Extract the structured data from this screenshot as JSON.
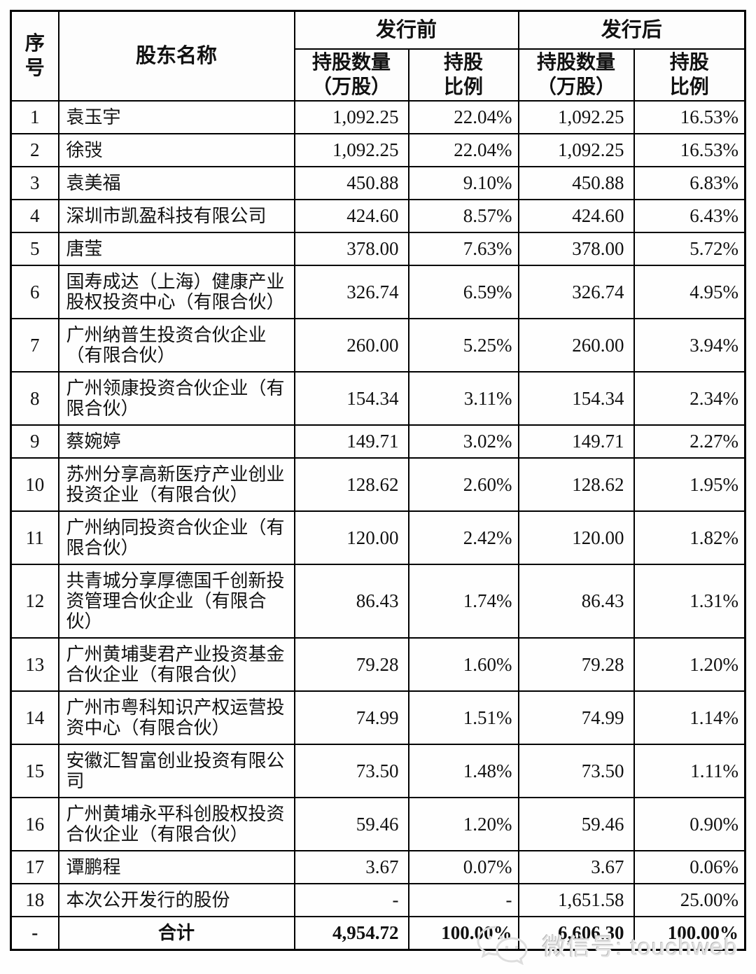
{
  "table": {
    "headers": {
      "no": "序\n号",
      "shareholder": "股东名称",
      "pre_issue": "发行前",
      "post_issue": "发行后",
      "qty": "持股数量\n（万股）",
      "ratio": "持股\n比例"
    },
    "rows": [
      {
        "no": "1",
        "name": "袁玉宇",
        "pre_qty": "1,092.25",
        "pre_pct": "22.04%",
        "post_qty": "1,092.25",
        "post_pct": "16.53%"
      },
      {
        "no": "2",
        "name": "徐弢",
        "pre_qty": "1,092.25",
        "pre_pct": "22.04%",
        "post_qty": "1,092.25",
        "post_pct": "16.53%"
      },
      {
        "no": "3",
        "name": "袁美福",
        "pre_qty": "450.88",
        "pre_pct": "9.10%",
        "post_qty": "450.88",
        "post_pct": "6.83%"
      },
      {
        "no": "4",
        "name": "深圳市凯盈科技有限公司",
        "pre_qty": "424.60",
        "pre_pct": "8.57%",
        "post_qty": "424.60",
        "post_pct": "6.43%"
      },
      {
        "no": "5",
        "name": "唐莹",
        "pre_qty": "378.00",
        "pre_pct": "7.63%",
        "post_qty": "378.00",
        "post_pct": "5.72%"
      },
      {
        "no": "6",
        "name": "国寿成达（上海）健康产业股权投资中心（有限合伙）",
        "pre_qty": "326.74",
        "pre_pct": "6.59%",
        "post_qty": "326.74",
        "post_pct": "4.95%"
      },
      {
        "no": "7",
        "name": "广州纳普生投资合伙企业（有限合伙）",
        "pre_qty": "260.00",
        "pre_pct": "5.25%",
        "post_qty": "260.00",
        "post_pct": "3.94%"
      },
      {
        "no": "8",
        "name": "广州领康投资合伙企业（有限合伙）",
        "pre_qty": "154.34",
        "pre_pct": "3.11%",
        "post_qty": "154.34",
        "post_pct": "2.34%"
      },
      {
        "no": "9",
        "name": "蔡婉婷",
        "pre_qty": "149.71",
        "pre_pct": "3.02%",
        "post_qty": "149.71",
        "post_pct": "2.27%"
      },
      {
        "no": "10",
        "name": "苏州分享高新医疗产业创业投资企业（有限合伙）",
        "pre_qty": "128.62",
        "pre_pct": "2.60%",
        "post_qty": "128.62",
        "post_pct": "1.95%"
      },
      {
        "no": "11",
        "name": "广州纳同投资合伙企业（有限合伙）",
        "pre_qty": "120.00",
        "pre_pct": "2.42%",
        "post_qty": "120.00",
        "post_pct": "1.82%"
      },
      {
        "no": "12",
        "name": "共青城分享厚德国千创新投资管理合伙企业（有限合伙）",
        "pre_qty": "86.43",
        "pre_pct": "1.74%",
        "post_qty": "86.43",
        "post_pct": "1.31%"
      },
      {
        "no": "13",
        "name": "广州黄埔斐君产业投资基金合伙企业（有限合伙）",
        "pre_qty": "79.28",
        "pre_pct": "1.60%",
        "post_qty": "79.28",
        "post_pct": "1.20%"
      },
      {
        "no": "14",
        "name": "广州市粤科知识产权运营投资中心（有限合伙）",
        "pre_qty": "74.99",
        "pre_pct": "1.51%",
        "post_qty": "74.99",
        "post_pct": "1.14%"
      },
      {
        "no": "15",
        "name": "安徽汇智富创业投资有限公司",
        "pre_qty": "73.50",
        "pre_pct": "1.48%",
        "post_qty": "73.50",
        "post_pct": "1.11%"
      },
      {
        "no": "16",
        "name": "广州黄埔永平科创股权投资合伙企业（有限合伙）",
        "pre_qty": "59.46",
        "pre_pct": "1.20%",
        "post_qty": "59.46",
        "post_pct": "0.90%"
      },
      {
        "no": "17",
        "name": "谭鹏程",
        "pre_qty": "3.67",
        "pre_pct": "0.07%",
        "post_qty": "3.67",
        "post_pct": "0.06%"
      },
      {
        "no": "18",
        "name": "本次公开发行的股份",
        "pre_qty": "-",
        "pre_pct": "-",
        "post_qty": "1,651.58",
        "post_pct": "25.00%"
      }
    ],
    "total": {
      "no": "-",
      "name": "合计",
      "pre_qty": "4,954.72",
      "pre_pct": "100.00%",
      "post_qty": "6,606.30",
      "post_pct": "100.00%"
    }
  },
  "footer": {
    "wechat_label": "微信号: touchweb",
    "wechat_icon": "wechat-logo",
    "watermark_color": "#e2e2e2"
  },
  "colors": {
    "border": "#000000",
    "text": "#111111",
    "background": "#ffffff"
  }
}
